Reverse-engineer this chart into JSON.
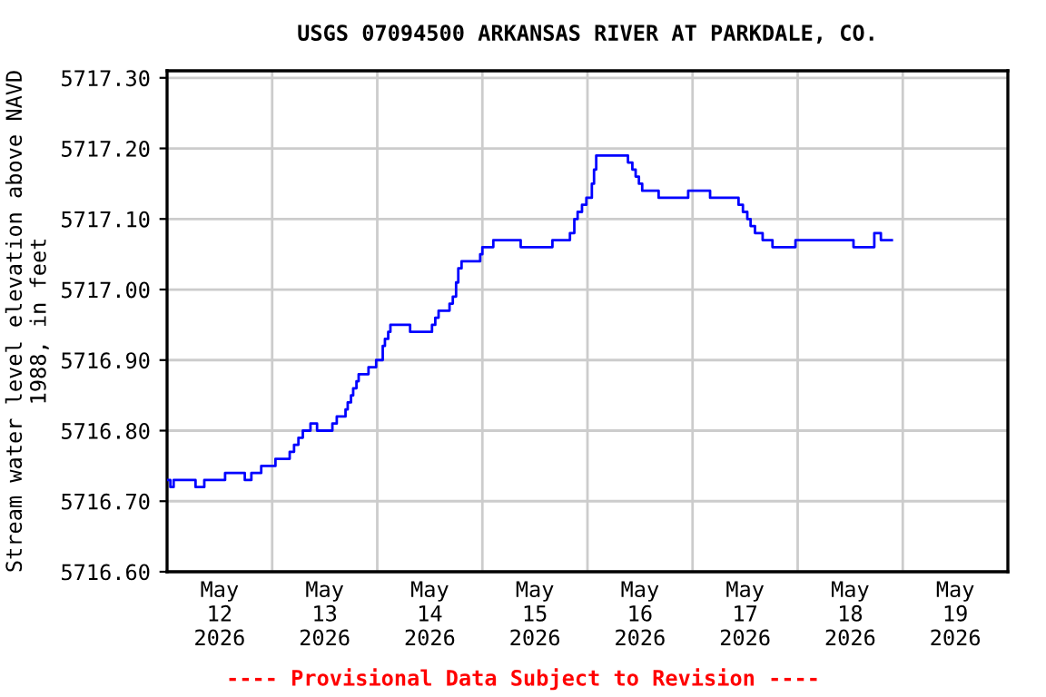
{
  "chart_data": {
    "type": "step",
    "title": "USGS 07094500 ARKANSAS RIVER AT PARKDALE, CO.",
    "ylabel": "Stream water level elevation above NAVD\n1988, in feet",
    "annotations": [
      "---- Provisional Data Subject to Revision ----"
    ],
    "x": [
      "2026-05-12T00:00",
      "2026-05-12T00:45",
      "2026-05-12T01:30",
      "2026-05-12T06:30",
      "2026-05-12T08:30",
      "2026-05-12T13:15",
      "2026-05-12T17:45",
      "2026-05-12T19:15",
      "2026-05-12T21:30",
      "2026-05-13T00:45",
      "2026-05-13T04:00",
      "2026-05-13T05:00",
      "2026-05-13T06:00",
      "2026-05-13T07:00",
      "2026-05-13T08:45",
      "2026-05-13T10:15",
      "2026-05-13T13:45",
      "2026-05-13T14:45",
      "2026-05-13T16:45",
      "2026-05-13T17:15",
      "2026-05-13T18:00",
      "2026-05-13T18:30",
      "2026-05-13T19:15",
      "2026-05-13T19:45",
      "2026-05-13T22:00",
      "2026-05-13T23:45",
      "2026-05-14T01:15",
      "2026-05-14T01:45",
      "2026-05-14T02:30",
      "2026-05-14T03:00",
      "2026-05-14T07:30",
      "2026-05-14T12:30",
      "2026-05-14T13:15",
      "2026-05-14T14:00",
      "2026-05-14T16:30",
      "2026-05-14T17:15",
      "2026-05-14T18:00",
      "2026-05-14T18:30",
      "2026-05-14T19:15",
      "2026-05-14T23:30",
      "2026-05-15T00:00",
      "2026-05-15T02:30",
      "2026-05-15T08:45",
      "2026-05-15T16:00",
      "2026-05-15T20:00",
      "2026-05-15T21:00",
      "2026-05-15T21:45",
      "2026-05-15T22:45",
      "2026-05-15T23:45",
      "2026-05-16T01:00",
      "2026-05-16T01:30",
      "2026-05-16T02:00",
      "2026-05-16T09:15",
      "2026-05-16T10:15",
      "2026-05-16T11:00",
      "2026-05-16T11:45",
      "2026-05-16T12:30",
      "2026-05-16T16:15",
      "2026-05-16T23:00",
      "2026-05-17T04:00",
      "2026-05-17T10:30",
      "2026-05-17T11:30",
      "2026-05-17T12:30",
      "2026-05-17T13:15",
      "2026-05-17T14:15",
      "2026-05-17T16:00",
      "2026-05-17T18:15",
      "2026-05-17T23:30",
      "2026-05-18T12:45",
      "2026-05-18T17:30",
      "2026-05-18T19:00",
      "2026-05-18T21:30"
    ],
    "series": [
      {
        "color": "#0000ff",
        "values": [
          5716.73,
          5716.72,
          5716.73,
          5716.72,
          5716.73,
          5716.74,
          5716.73,
          5716.74,
          5716.75,
          5716.76,
          5716.77,
          5716.78,
          5716.79,
          5716.8,
          5716.81,
          5716.8,
          5716.81,
          5716.82,
          5716.83,
          5716.84,
          5716.85,
          5716.86,
          5716.87,
          5716.88,
          5716.89,
          5716.9,
          5716.92,
          5716.93,
          5716.94,
          5716.95,
          5716.94,
          5716.95,
          5716.96,
          5716.97,
          5716.98,
          5716.99,
          5717.01,
          5717.03,
          5717.04,
          5717.05,
          5717.06,
          5717.07,
          5717.06,
          5717.07,
          5717.08,
          5717.1,
          5717.11,
          5717.12,
          5717.13,
          5717.15,
          5717.17,
          5717.19,
          5717.18,
          5717.17,
          5717.16,
          5717.15,
          5717.14,
          5717.13,
          5717.14,
          5717.13,
          5717.12,
          5717.11,
          5717.1,
          5717.09,
          5717.08,
          5717.07,
          5717.06,
          5717.07,
          5717.06,
          5717.08,
          5717.07,
          5717.07
        ]
      }
    ],
    "xlim": [
      "2026-05-12T00:00",
      "2026-05-20T00:00"
    ],
    "xticks": [
      {
        "value": "2026-05-12T12:00",
        "label": "May\n12\n2026"
      },
      {
        "value": "2026-05-13T12:00",
        "label": "May\n13\n2026"
      },
      {
        "value": "2026-05-14T12:00",
        "label": "May\n14\n2026"
      },
      {
        "value": "2026-05-15T12:00",
        "label": "May\n15\n2026"
      },
      {
        "value": "2026-05-16T12:00",
        "label": "May\n16\n2026"
      },
      {
        "value": "2026-05-17T12:00",
        "label": "May\n17\n2026"
      },
      {
        "value": "2026-05-18T12:00",
        "label": "May\n18\n2026"
      },
      {
        "value": "2026-05-19T12:00",
        "label": "May\n19\n2026"
      },
      {
        "value": "2026-05-13T00:00",
        "label": null
      },
      {
        "value": "2026-05-14T00:00",
        "label": null
      },
      {
        "value": "2026-05-15T00:00",
        "label": null
      },
      {
        "value": "2026-05-16T00:00",
        "label": null
      },
      {
        "value": "2026-05-17T00:00",
        "label": null
      },
      {
        "value": "2026-05-18T00:00",
        "label": null
      },
      {
        "value": "2026-05-19T00:00",
        "label": null
      }
    ],
    "ylim": [
      5716.6,
      5717.31
    ],
    "yticks": [
      {
        "value": 5716.6,
        "label": "5716.60"
      },
      {
        "value": 5716.7,
        "label": "5716.70"
      },
      {
        "value": 5716.8,
        "label": "5716.80"
      },
      {
        "value": 5716.9,
        "label": "5716.90"
      },
      {
        "value": 5717.0,
        "label": "5717.00"
      },
      {
        "value": 5717.1,
        "label": "5717.10"
      },
      {
        "value": 5717.2,
        "label": "5717.20"
      },
      {
        "value": 5717.3,
        "label": "5717.30"
      }
    ],
    "grid": true,
    "marker": "none",
    "line_style": "solid"
  }
}
